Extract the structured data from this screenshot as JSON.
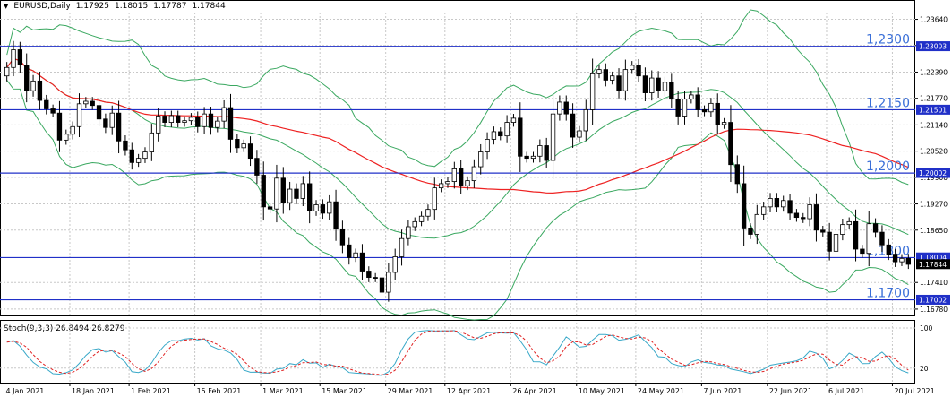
{
  "header": {
    "symbol": "EURUSD,Daily",
    "open": "1.17925",
    "high": "1.18015",
    "low": "1.17787",
    "close": "1.17844"
  },
  "stoch_header": {
    "name": "Stoch(9,3,3)",
    "main": "26.8494",
    "signal": "26.8279"
  },
  "colors": {
    "candle_up": "#ffffff",
    "candle_down": "#000000",
    "candle_edge": "#000000",
    "ma": "#ee2222",
    "bands": "#3aa860",
    "level_line": "#2030c8",
    "level_label": "#3a6fd8",
    "stoch_main": "#38a8c8",
    "stoch_signal": "#e02020",
    "grid": "#c8c8c8"
  },
  "chart_data": {
    "type": "candlestick",
    "price_axis": {
      "ylim": [
        1.1663,
        1.238
      ],
      "ticks": [
        "1.23640",
        "1.23020",
        "1.22390",
        "1.21770",
        "1.21140",
        "1.20520",
        "1.19900",
        "1.19270",
        "1.18650",
        "1.18004",
        "1.17844",
        "1.17410",
        "1.17002",
        "1.16780"
      ],
      "boxed": [
        "1.23003",
        "1.21501",
        "1.20002",
        "1.18004",
        "1.17844",
        "1.17002"
      ]
    },
    "levels": [
      {
        "label": "1,2300",
        "value": 1.23
      },
      {
        "label": "1,2150",
        "value": 1.215
      },
      {
        "label": "1,2000",
        "value": 1.2
      },
      {
        "label": "1,1800",
        "value": 1.18
      },
      {
        "label": "1,1700",
        "value": 1.17
      }
    ],
    "x_labels": [
      "4 Jan 2021",
      "18 Jan 2021",
      "1 Feb 2021",
      "15 Feb 2021",
      "1 Mar 2021",
      "15 Mar 2021",
      "29 Mar 2021",
      "12 Apr 2021",
      "26 Apr 2021",
      "10 May 2021",
      "24 May 2021",
      "7 Jun 2021",
      "22 Jun 2021",
      "6 Jul 2021",
      "20 Jul 2021"
    ],
    "close": [
      1.225,
      1.2292,
      1.2256,
      1.2195,
      1.2218,
      1.2172,
      1.2152,
      1.2142,
      1.2078,
      1.2092,
      1.211,
      1.2164,
      1.217,
      1.216,
      1.2128,
      1.2108,
      1.2142,
      1.2076,
      1.2055,
      1.2025,
      1.2035,
      1.205,
      1.2095,
      1.2135,
      1.212,
      1.2136,
      1.212,
      1.2124,
      1.2132,
      1.211,
      1.214,
      1.2108,
      1.2123,
      1.2155,
      1.208,
      1.206,
      1.2069,
      1.2035,
      1.1995,
      1.192,
      1.1915,
      1.1988,
      1.193,
      1.1962,
      1.194,
      1.1975,
      1.191,
      1.1925,
      1.1905,
      1.1932,
      1.1868,
      1.183,
      1.18,
      1.1811,
      1.1768,
      1.1753,
      1.1752,
      1.1718,
      1.1765,
      1.1802,
      1.1845,
      1.1873,
      1.1885,
      1.1898,
      1.1914,
      1.1965,
      1.1975,
      1.198,
      1.201,
      1.197,
      1.1982,
      1.2015,
      1.205,
      1.208,
      1.2098,
      1.2088,
      1.212,
      1.213,
      1.204,
      1.2035,
      1.204,
      1.2065,
      1.203,
      1.214,
      1.2168,
      1.214,
      1.2085,
      1.21,
      1.215,
      1.2235,
      1.2245,
      1.222,
      1.223,
      1.2195,
      1.2245,
      1.2255,
      1.223,
      1.219,
      1.2225,
      1.2195,
      1.2215,
      1.2175,
      1.2135,
      1.2175,
      1.2185,
      1.215,
      1.2145,
      1.2165,
      1.2115,
      1.212,
      1.202,
      1.1975,
      1.187,
      1.1855,
      1.1902,
      1.192,
      1.194,
      1.192,
      1.1935,
      1.1905,
      1.1895,
      1.1892,
      1.1925,
      1.1865,
      1.186,
      1.1815,
      1.1855,
      1.1878,
      1.1885,
      1.182,
      1.181,
      1.188,
      1.186,
      1.183,
      1.1808,
      1.179,
      1.1798,
      1.1784
    ]
  }
}
